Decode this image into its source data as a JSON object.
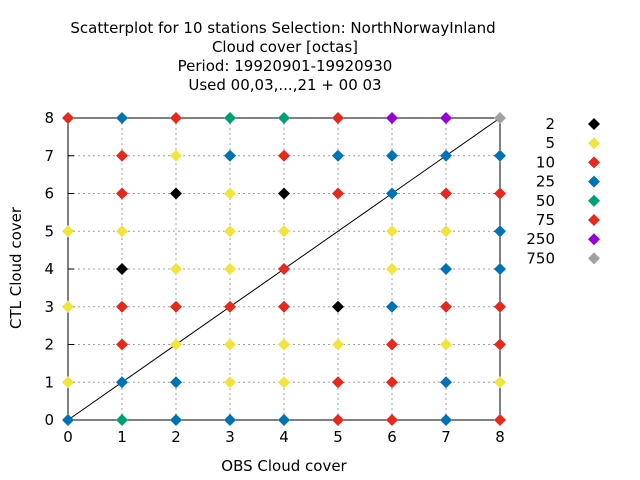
{
  "chart_data": {
    "type": "scatter",
    "title_lines": [
      "Scatterplot for   10 stations Selection: NorthNorwayInland",
      "Cloud cover [octas]",
      "Period: 19920901-19920930",
      "Used  00,03,...,21  + 00 03"
    ],
    "xlabel": "OBS Cloud cover",
    "ylabel": "CTL Cloud cover",
    "xlim": [
      0,
      8
    ],
    "ylim": [
      0,
      8
    ],
    "xticks": [
      0,
      1,
      2,
      3,
      4,
      5,
      6,
      7,
      8
    ],
    "yticks": [
      0,
      1,
      2,
      3,
      4,
      5,
      6,
      7,
      8
    ],
    "grid": true,
    "diagonal_line": true,
    "legend_position": "right",
    "legend": [
      {
        "label": "2",
        "color": "#000000"
      },
      {
        "label": "5",
        "color": "#f0e442"
      },
      {
        "label": "10",
        "color": "#e02b1e"
      },
      {
        "label": "25",
        "color": "#0072b2"
      },
      {
        "label": "50",
        "color": "#009e73"
      },
      {
        "label": "75",
        "color": "#e02b1e"
      },
      {
        "label": "250",
        "color": "#9400d3"
      },
      {
        "label": "750",
        "color": "#a0a0a0"
      }
    ],
    "points": [
      {
        "x": 0,
        "y": 0,
        "color": "#0072b2"
      },
      {
        "x": 1,
        "y": 0,
        "color": "#009e73"
      },
      {
        "x": 2,
        "y": 0,
        "color": "#0072b2"
      },
      {
        "x": 3,
        "y": 0,
        "color": "#0072b2"
      },
      {
        "x": 4,
        "y": 0,
        "color": "#0072b2"
      },
      {
        "x": 5,
        "y": 0,
        "color": "#e02b1e"
      },
      {
        "x": 6,
        "y": 0,
        "color": "#e02b1e"
      },
      {
        "x": 7,
        "y": 0,
        "color": "#0072b2"
      },
      {
        "x": 8,
        "y": 0,
        "color": "#e02b1e"
      },
      {
        "x": 0,
        "y": 1,
        "color": "#f0e442"
      },
      {
        "x": 1,
        "y": 1,
        "color": "#0072b2"
      },
      {
        "x": 2,
        "y": 1,
        "color": "#0072b2"
      },
      {
        "x": 3,
        "y": 1,
        "color": "#f0e442"
      },
      {
        "x": 4,
        "y": 1,
        "color": "#f0e442"
      },
      {
        "x": 5,
        "y": 1,
        "color": "#e02b1e"
      },
      {
        "x": 6,
        "y": 1,
        "color": "#e02b1e"
      },
      {
        "x": 7,
        "y": 1,
        "color": "#0072b2"
      },
      {
        "x": 8,
        "y": 1,
        "color": "#f0e442"
      },
      {
        "x": 1,
        "y": 2,
        "color": "#e02b1e"
      },
      {
        "x": 2,
        "y": 2,
        "color": "#f0e442"
      },
      {
        "x": 3,
        "y": 2,
        "color": "#f0e442"
      },
      {
        "x": 4,
        "y": 2,
        "color": "#f0e442"
      },
      {
        "x": 5,
        "y": 2,
        "color": "#f0e442"
      },
      {
        "x": 6,
        "y": 2,
        "color": "#e02b1e"
      },
      {
        "x": 7,
        "y": 2,
        "color": "#f0e442"
      },
      {
        "x": 8,
        "y": 2,
        "color": "#e02b1e"
      },
      {
        "x": 0,
        "y": 3,
        "color": "#f0e442"
      },
      {
        "x": 1,
        "y": 3,
        "color": "#e02b1e"
      },
      {
        "x": 2,
        "y": 3,
        "color": "#e02b1e"
      },
      {
        "x": 3,
        "y": 3,
        "color": "#e02b1e"
      },
      {
        "x": 4,
        "y": 3,
        "color": "#e02b1e"
      },
      {
        "x": 5,
        "y": 3,
        "color": "#000000"
      },
      {
        "x": 6,
        "y": 3,
        "color": "#0072b2"
      },
      {
        "x": 7,
        "y": 3,
        "color": "#e02b1e"
      },
      {
        "x": 8,
        "y": 3,
        "color": "#e02b1e"
      },
      {
        "x": 1,
        "y": 4,
        "color": "#000000"
      },
      {
        "x": 2,
        "y": 4,
        "color": "#f0e442"
      },
      {
        "x": 3,
        "y": 4,
        "color": "#f0e442"
      },
      {
        "x": 4,
        "y": 4,
        "color": "#e02b1e"
      },
      {
        "x": 6,
        "y": 4,
        "color": "#f0e442"
      },
      {
        "x": 7,
        "y": 4,
        "color": "#0072b2"
      },
      {
        "x": 8,
        "y": 4,
        "color": "#0072b2"
      },
      {
        "x": 0,
        "y": 5,
        "color": "#f0e442"
      },
      {
        "x": 1,
        "y": 5,
        "color": "#f0e442"
      },
      {
        "x": 3,
        "y": 5,
        "color": "#f0e442"
      },
      {
        "x": 4,
        "y": 5,
        "color": "#f0e442"
      },
      {
        "x": 6,
        "y": 5,
        "color": "#f0e442"
      },
      {
        "x": 7,
        "y": 5,
        "color": "#f0e442"
      },
      {
        "x": 8,
        "y": 5,
        "color": "#0072b2"
      },
      {
        "x": 1,
        "y": 6,
        "color": "#e02b1e"
      },
      {
        "x": 2,
        "y": 6,
        "color": "#000000"
      },
      {
        "x": 3,
        "y": 6,
        "color": "#f0e442"
      },
      {
        "x": 4,
        "y": 6,
        "color": "#000000"
      },
      {
        "x": 5,
        "y": 6,
        "color": "#e02b1e"
      },
      {
        "x": 6,
        "y": 6,
        "color": "#0072b2"
      },
      {
        "x": 7,
        "y": 6,
        "color": "#e02b1e"
      },
      {
        "x": 8,
        "y": 6,
        "color": "#e02b1e"
      },
      {
        "x": 1,
        "y": 7,
        "color": "#e02b1e"
      },
      {
        "x": 2,
        "y": 7,
        "color": "#f0e442"
      },
      {
        "x": 3,
        "y": 7,
        "color": "#0072b2"
      },
      {
        "x": 4,
        "y": 7,
        "color": "#e02b1e"
      },
      {
        "x": 5,
        "y": 7,
        "color": "#0072b2"
      },
      {
        "x": 6,
        "y": 7,
        "color": "#0072b2"
      },
      {
        "x": 7,
        "y": 7,
        "color": "#0072b2"
      },
      {
        "x": 8,
        "y": 7,
        "color": "#0072b2"
      },
      {
        "x": 0,
        "y": 8,
        "color": "#e02b1e"
      },
      {
        "x": 1,
        "y": 8,
        "color": "#0072b2"
      },
      {
        "x": 2,
        "y": 8,
        "color": "#e02b1e"
      },
      {
        "x": 3,
        "y": 8,
        "color": "#009e73"
      },
      {
        "x": 4,
        "y": 8,
        "color": "#009e73"
      },
      {
        "x": 5,
        "y": 8,
        "color": "#e02b1e"
      },
      {
        "x": 6,
        "y": 8,
        "color": "#9400d3"
      },
      {
        "x": 7,
        "y": 8,
        "color": "#9400d3"
      },
      {
        "x": 8,
        "y": 8,
        "color": "#a0a0a0"
      }
    ]
  }
}
